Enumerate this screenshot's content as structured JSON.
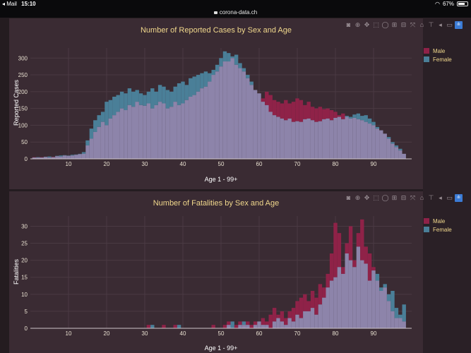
{
  "status": {
    "app": "Mail",
    "time": "15:10",
    "battery": "67%",
    "battery_fraction": 0.67
  },
  "browser": {
    "url": "corona-data.ch"
  },
  "colors": {
    "male": "#8f2248",
    "female": "#4a7f98",
    "overlap": "#8d84aa",
    "grid": "#4a3a43",
    "axis_text": "#e8e0d0",
    "title": "#f0d78c"
  },
  "toolbar": {
    "tools": [
      "camera-icon",
      "zoom-icon",
      "pan-icon",
      "box-select-icon",
      "lasso-icon",
      "zoom-in-icon",
      "zoom-out-icon",
      "autoscale-icon",
      "home-icon",
      "spike-icon",
      "hover-closest-icon",
      "hover-compare-icon",
      "plotly-logo-icon"
    ]
  },
  "chart_data": [
    {
      "type": "bar",
      "title": "Number of Reported Cases by Sex and Age",
      "xlabel": "Age 1 - 99+",
      "ylabel": "Reported Cases",
      "xlim": [
        0,
        100
      ],
      "ylim": [
        0,
        330
      ],
      "xticks": [
        10,
        20,
        30,
        40,
        50,
        60,
        70,
        80,
        90
      ],
      "yticks": [
        0,
        50,
        100,
        150,
        200,
        250,
        300
      ],
      "legend": [
        "Male",
        "Female"
      ],
      "x": [
        1,
        2,
        3,
        4,
        5,
        6,
        7,
        8,
        9,
        10,
        11,
        12,
        13,
        14,
        15,
        16,
        17,
        18,
        19,
        20,
        21,
        22,
        23,
        24,
        25,
        26,
        27,
        28,
        29,
        30,
        31,
        32,
        33,
        34,
        35,
        36,
        37,
        38,
        39,
        40,
        41,
        42,
        43,
        44,
        45,
        46,
        47,
        48,
        49,
        50,
        51,
        52,
        53,
        54,
        55,
        56,
        57,
        58,
        59,
        60,
        61,
        62,
        63,
        64,
        65,
        66,
        67,
        68,
        69,
        70,
        71,
        72,
        73,
        74,
        75,
        76,
        77,
        78,
        79,
        80,
        81,
        82,
        83,
        84,
        85,
        86,
        87,
        88,
        89,
        90,
        91,
        92,
        93,
        94,
        95,
        96,
        97,
        98
      ],
      "series": [
        {
          "name": "Male",
          "values": [
            5,
            4,
            5,
            6,
            4,
            6,
            8,
            7,
            10,
            9,
            10,
            12,
            14,
            15,
            40,
            60,
            80,
            95,
            110,
            100,
            120,
            130,
            140,
            150,
            145,
            160,
            155,
            170,
            160,
            158,
            165,
            150,
            160,
            170,
            165,
            150,
            155,
            170,
            160,
            165,
            175,
            185,
            190,
            200,
            210,
            215,
            230,
            250,
            260,
            275,
            290,
            290,
            300,
            280,
            270,
            260,
            240,
            220,
            205,
            195,
            180,
            200,
            190,
            175,
            170,
            165,
            175,
            165,
            170,
            180,
            175,
            160,
            170,
            155,
            150,
            155,
            148,
            150,
            145,
            140,
            130,
            135,
            125,
            120,
            122,
            118,
            115,
            110,
            105,
            100,
            90,
            85,
            75,
            60,
            45,
            35,
            25,
            15
          ]
        },
        {
          "name": "Female",
          "values": [
            4,
            5,
            4,
            6,
            7,
            5,
            9,
            10,
            11,
            10,
            12,
            13,
            15,
            20,
            55,
            90,
            115,
            130,
            140,
            170,
            175,
            185,
            190,
            200,
            195,
            210,
            200,
            205,
            195,
            190,
            200,
            210,
            200,
            220,
            215,
            205,
            200,
            215,
            225,
            230,
            220,
            240,
            245,
            250,
            255,
            260,
            255,
            265,
            280,
            300,
            320,
            315,
            305,
            310,
            285,
            270,
            250,
            230,
            205,
            195,
            170,
            160,
            140,
            130,
            125,
            120,
            115,
            120,
            110,
            112,
            110,
            118,
            120,
            115,
            110,
            112,
            118,
            120,
            115,
            122,
            125,
            118,
            128,
            125,
            132,
            135,
            128,
            130,
            120,
            110,
            95,
            85,
            75,
            65,
            50,
            40,
            30,
            15
          ]
        }
      ]
    },
    {
      "type": "bar",
      "title": "Number of Fatalities by Sex and Age",
      "xlabel": "Age 1 - 99+",
      "ylabel": "Fatalities",
      "xlim": [
        0,
        100
      ],
      "ylim": [
        0,
        33
      ],
      "xticks": [
        10,
        20,
        30,
        40,
        50,
        60,
        70,
        80,
        90
      ],
      "yticks": [
        0,
        5,
        10,
        15,
        20,
        25,
        30
      ],
      "legend": [
        "Male",
        "Female"
      ],
      "x": [
        1,
        2,
        3,
        4,
        5,
        6,
        7,
        8,
        9,
        10,
        11,
        12,
        13,
        14,
        15,
        16,
        17,
        18,
        19,
        20,
        21,
        22,
        23,
        24,
        25,
        26,
        27,
        28,
        29,
        30,
        31,
        32,
        33,
        34,
        35,
        36,
        37,
        38,
        39,
        40,
        41,
        42,
        43,
        44,
        45,
        46,
        47,
        48,
        49,
        50,
        51,
        52,
        53,
        54,
        55,
        56,
        57,
        58,
        59,
        60,
        61,
        62,
        63,
        64,
        65,
        66,
        67,
        68,
        69,
        70,
        71,
        72,
        73,
        74,
        75,
        76,
        77,
        78,
        79,
        80,
        81,
        82,
        83,
        84,
        85,
        86,
        87,
        88,
        89,
        90,
        91,
        92,
        93,
        94,
        95,
        96,
        97,
        98
      ],
      "series": [
        {
          "name": "Male",
          "values": [
            0,
            0,
            0,
            0,
            0,
            0,
            0,
            0,
            0,
            0,
            0,
            0,
            0,
            0,
            0,
            0,
            0,
            0,
            0,
            0,
            0,
            0,
            0,
            0,
            0,
            0,
            0,
            0,
            0,
            0,
            1,
            0,
            0,
            0,
            1,
            0,
            0,
            1,
            0,
            0,
            0,
            0,
            0,
            0,
            0,
            0,
            0,
            1,
            0,
            0,
            1,
            2,
            0,
            1,
            2,
            1,
            2,
            1,
            2,
            2,
            3,
            2,
            4,
            6,
            4,
            5,
            3,
            5,
            6,
            8,
            9,
            10,
            8,
            11,
            9,
            13,
            12,
            16,
            22,
            31,
            28,
            18,
            25,
            30,
            20,
            28,
            32,
            24,
            22,
            18,
            14,
            11,
            12,
            8,
            5,
            3,
            3,
            2
          ]
        },
        {
          "name": "Female",
          "values": [
            0,
            0,
            0,
            0,
            0,
            0,
            0,
            0,
            0,
            0,
            0,
            0,
            0,
            0,
            0,
            0,
            0,
            0,
            0,
            0,
            0,
            0,
            0,
            0,
            0,
            0,
            0,
            0,
            0,
            0,
            0,
            1,
            0,
            0,
            0,
            0,
            0,
            0,
            1,
            0,
            0,
            0,
            0,
            0,
            0,
            0,
            0,
            0,
            0,
            0,
            0,
            1,
            2,
            0,
            1,
            2,
            1,
            0,
            1,
            2,
            1,
            1,
            0,
            2,
            3,
            2,
            1,
            3,
            2,
            4,
            3,
            5,
            5,
            6,
            4,
            7,
            9,
            12,
            14,
            15,
            18,
            16,
            22,
            20,
            18,
            24,
            20,
            19,
            14,
            17,
            16,
            12,
            13,
            10,
            11,
            6,
            4,
            7
          ]
        }
      ]
    }
  ]
}
